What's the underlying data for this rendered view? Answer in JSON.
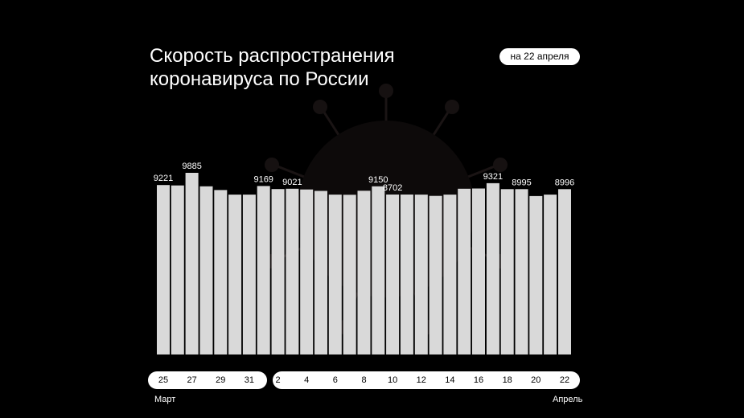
{
  "title_lines": [
    "Скорость распространения",
    "коронавируса по России"
  ],
  "date_badge": "на 22 апреля",
  "months": {
    "start": "Март",
    "end": "Апрель"
  },
  "colors": {
    "background": "#000000",
    "bar": "#d9d9d9",
    "text": "#ffffff",
    "pill": "#ffffff"
  },
  "chart_data": {
    "type": "bar",
    "categories": [
      "25",
      "26",
      "27",
      "28",
      "29",
      "30",
      "31",
      "1",
      "2",
      "3",
      "4",
      "5",
      "6",
      "7",
      "8",
      "9",
      "10",
      "11",
      "12",
      "13",
      "14",
      "15",
      "16",
      "17",
      "18",
      "19",
      "20",
      "21",
      "22"
    ],
    "x_tick_labels": [
      "25",
      "27",
      "29",
      "31",
      "2",
      "4",
      "6",
      "8",
      "10",
      "12",
      "14",
      "16",
      "18",
      "20",
      "22"
    ],
    "values": [
      9221,
      9200,
      9885,
      9150,
      8950,
      8700,
      8700,
      9169,
      9000,
      9021,
      8980,
      8900,
      8700,
      8690,
      8910,
      9150,
      8702,
      8702,
      8700,
      8630,
      8700,
      9020,
      9030,
      9321,
      8995,
      8995,
      8620,
      8700,
      8996
    ],
    "data_labels": {
      "0": "9221",
      "2": "9885",
      "7": "9169",
      "9": "9021",
      "15": "9150",
      "16": "8702",
      "23": "9321",
      "25": "8995",
      "28": "8996"
    },
    "ylim": [
      0,
      10000
    ],
    "grid": false,
    "legend": "none"
  }
}
